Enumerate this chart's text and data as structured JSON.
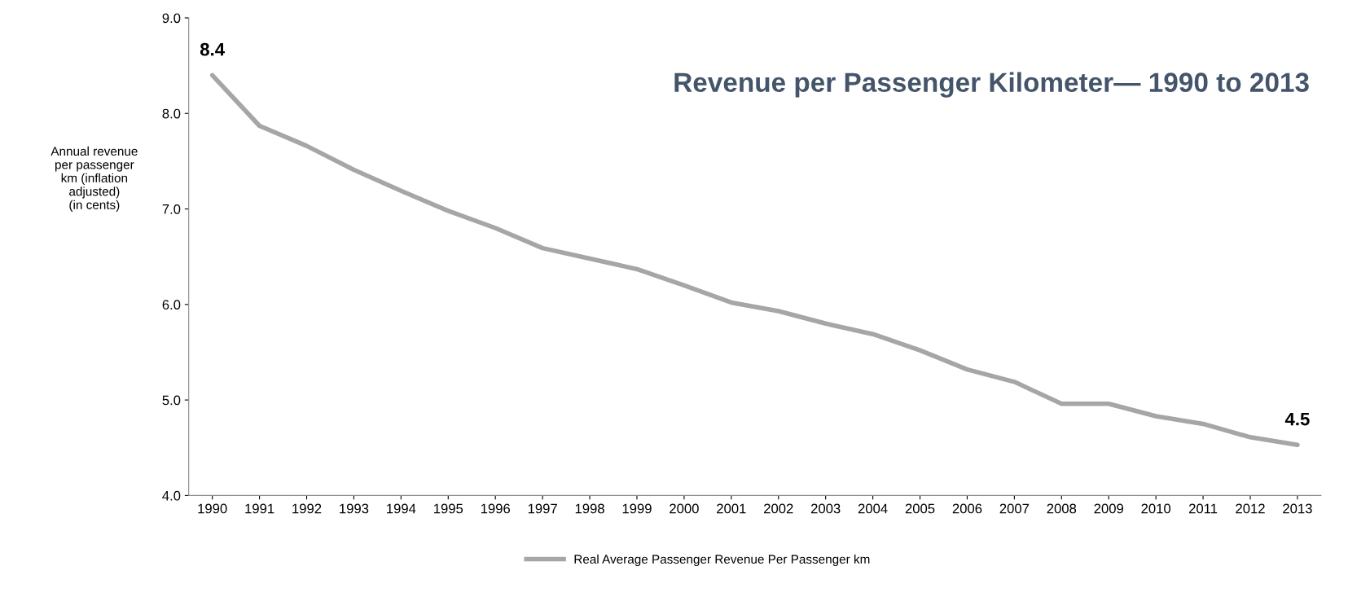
{
  "chart_data": {
    "type": "line",
    "title": "Revenue per Passenger Kilometer— 1990 to 2013",
    "ylabel": "Annual revenue\nper passenger\nkm (inflation\nadjusted)\n(in cents)",
    "categories": [
      "1990",
      "1991",
      "1992",
      "1993",
      "1994",
      "1995",
      "1996",
      "1997",
      "1998",
      "1999",
      "2000",
      "2001",
      "2002",
      "2003",
      "2004",
      "2005",
      "2006",
      "2007",
      "2008",
      "2009",
      "2010",
      "2011",
      "2012",
      "2013"
    ],
    "series": [
      {
        "name": "Real Average Passenger Revenue Per Passenger km",
        "color": "#a6a6a6",
        "values": [
          8.4,
          7.87,
          7.66,
          7.41,
          7.19,
          6.98,
          6.8,
          6.59,
          6.48,
          6.37,
          6.2,
          6.02,
          5.93,
          5.8,
          5.69,
          5.52,
          5.32,
          5.19,
          4.96,
          4.96,
          4.83,
          4.75,
          4.61,
          4.53
        ],
        "value_labels": [
          "8.4",
          null,
          null,
          null,
          null,
          null,
          null,
          null,
          null,
          null,
          null,
          null,
          null,
          null,
          null,
          null,
          null,
          null,
          null,
          null,
          null,
          null,
          null,
          "4.5"
        ]
      }
    ],
    "ylim": [
      4.0,
      9.0
    ],
    "yticks": [
      {
        "value": 4,
        "label": "4.0"
      },
      {
        "value": 5,
        "label": "5.0"
      },
      {
        "value": 6,
        "label": "6.0"
      },
      {
        "value": 7,
        "label": "7.0"
      },
      {
        "value": 8,
        "label": "8.0"
      },
      {
        "value": 9,
        "label": "9.0"
      }
    ],
    "grid": false,
    "legend": "bottom",
    "marker": "none",
    "line_style": "solid"
  }
}
